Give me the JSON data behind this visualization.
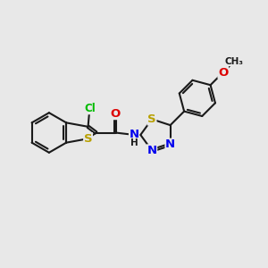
{
  "bg_color": "#e8e8e8",
  "bond_color": "#1a1a1a",
  "bond_width": 1.5,
  "atom_colors": {
    "C": "#1a1a1a",
    "H": "#1a1a1a",
    "N": "#0000ee",
    "O": "#dd0000",
    "S": "#b8a000",
    "Cl": "#00bb00"
  },
  "font_size": 8.5,
  "fig_size": [
    3.0,
    3.0
  ],
  "dpi": 100,
  "xlim": [
    0,
    10
  ],
  "ylim": [
    0,
    10
  ]
}
